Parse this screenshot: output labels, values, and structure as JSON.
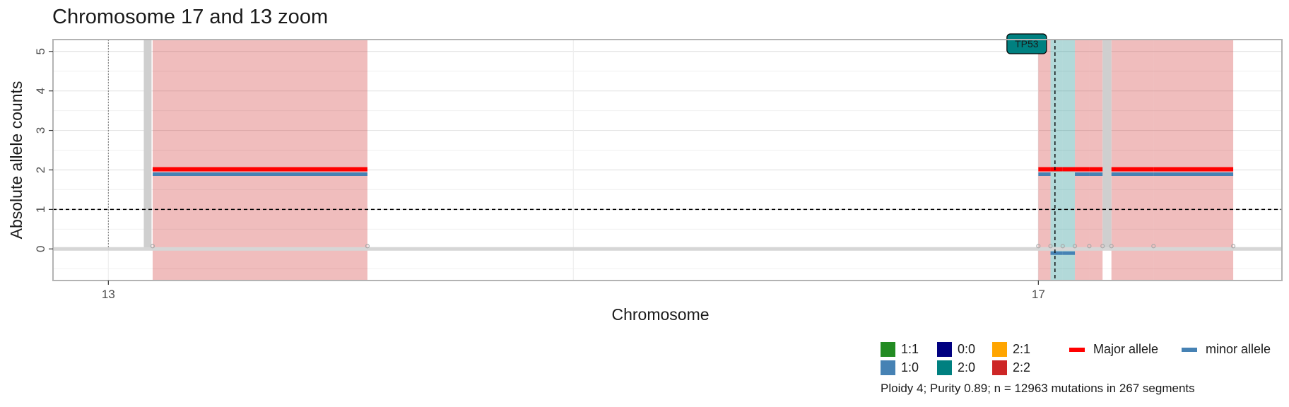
{
  "chart_data": {
    "type": "segments",
    "title": "Chromosome 17 and 13 zoom",
    "xlabel": "Chromosome",
    "ylabel": "Absolute allele counts",
    "ylim": [
      -0.8,
      5.3
    ],
    "yticks": [
      0,
      1,
      2,
      3,
      4,
      5
    ],
    "x_tick_labels": [
      "13",
      "17"
    ],
    "x_ticks": [
      0,
      42
    ],
    "xlim": [
      -2.5,
      53
    ],
    "ploidy_reference_line": 1,
    "gene_annotations": [
      {
        "label": "TP53",
        "x": 42.75,
        "color": "#008080"
      }
    ],
    "chromosome_boundaries": [
      0,
      42,
      55
    ],
    "segments": [
      {
        "start": 2,
        "end": 11.7,
        "major": 2,
        "minor": 2
      },
      {
        "start": 42,
        "end": 42.55,
        "major": 2,
        "minor": 2
      },
      {
        "start": 42.55,
        "end": 43.1,
        "major": 2,
        "minor": 0
      },
      {
        "start": 43.1,
        "end": 43.65,
        "major": 2,
        "minor": 0
      },
      {
        "start": 43.65,
        "end": 44.3,
        "major": 2,
        "minor": 2
      },
      {
        "start": 44.3,
        "end": 44.9,
        "major": 2,
        "minor": 2
      },
      {
        "start": 45.3,
        "end": 47.2,
        "major": 2,
        "minor": 2
      },
      {
        "start": 47.2,
        "end": 50.8,
        "major": 2,
        "minor": 2
      }
    ],
    "legend": {
      "cnv_states": [
        {
          "label": "1:1",
          "color": "#228B22"
        },
        {
          "label": "1:0",
          "color": "#4682B4"
        },
        {
          "label": "0:0",
          "color": "#000080"
        },
        {
          "label": "2:0",
          "color": "#008080"
        },
        {
          "label": "2:1",
          "color": "#FFA500"
        },
        {
          "label": "2:2",
          "color": "#CD2626"
        }
      ],
      "alleles": [
        {
          "label": "Major allele",
          "color": "#FF0000"
        },
        {
          "label": "minor allele",
          "color": "#4682B4"
        }
      ]
    },
    "caption": "Ploidy 4; Purity  0.89; n = 12963 mutations in 267 segments"
  }
}
